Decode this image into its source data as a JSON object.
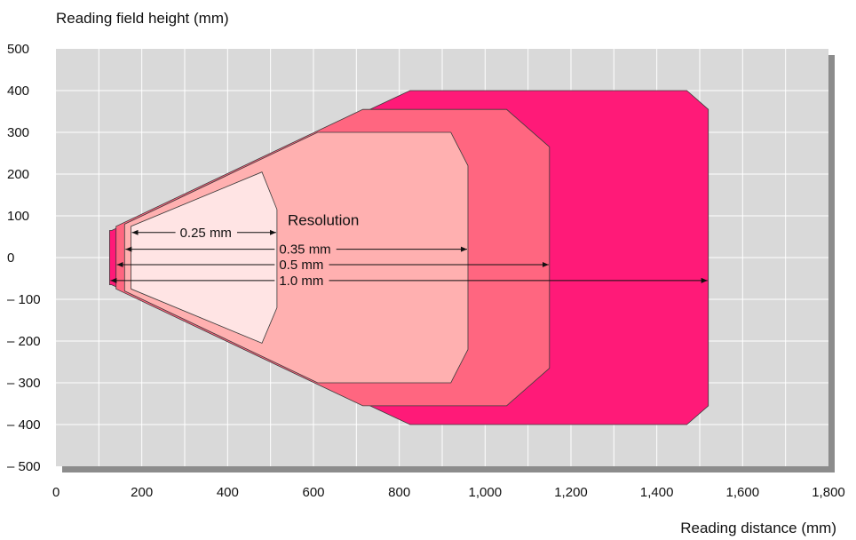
{
  "chart_data": {
    "type": "area",
    "xlabel": "Reading distance (mm)",
    "ylabel": "Reading field height (mm)",
    "xlim": [
      0,
      1800
    ],
    "ylim": [
      -500,
      500
    ],
    "x_ticks": [
      0,
      200,
      400,
      600,
      800,
      1000,
      1200,
      1400,
      1600,
      1800
    ],
    "x_tick_labels": [
      "0",
      "200",
      "400",
      "600",
      "800",
      "1,000",
      "1,200",
      "1,400",
      "1,600",
      "1,800"
    ],
    "y_ticks": [
      500,
      400,
      300,
      200,
      100,
      0,
      -100,
      -200,
      -300,
      -400,
      -500
    ],
    "y_tick_labels": [
      "500",
      "400",
      "300",
      "200",
      "100",
      "0",
      "– 100",
      "– 200",
      "– 300",
      "– 400",
      "– 500"
    ],
    "grid": true,
    "colors": {
      "background": "#d9d9d9",
      "grid": "#ffffff",
      "shadow": "#8c8c8c",
      "outline": "#3a3a3a"
    },
    "annotation_title": "Resolution",
    "series": [
      {
        "name": "1.0 mm",
        "color": "#ff1a78",
        "label_y": -55,
        "arrow_end": 1520,
        "points": [
          [
            125,
            65
          ],
          [
            130,
            65
          ],
          [
            825,
            400
          ],
          [
            1470,
            400
          ],
          [
            1520,
            355
          ],
          [
            1520,
            -355
          ],
          [
            1470,
            -400
          ],
          [
            825,
            -400
          ],
          [
            130,
            -65
          ],
          [
            125,
            -65
          ]
        ]
      },
      {
        "name": "0.5 mm",
        "color": "#ff6680",
        "label_y": -17,
        "arrow_end": 1150,
        "points": [
          [
            140,
            75
          ],
          [
            715,
            355
          ],
          [
            1050,
            355
          ],
          [
            1150,
            265
          ],
          [
            1150,
            -265
          ],
          [
            1050,
            -355
          ],
          [
            715,
            -355
          ],
          [
            140,
            -75
          ]
        ]
      },
      {
        "name": "0.35 mm",
        "color": "#ffb0b0",
        "label_y": 20,
        "arrow_end": 960,
        "points": [
          [
            160,
            80
          ],
          [
            610,
            300
          ],
          [
            920,
            300
          ],
          [
            960,
            220
          ],
          [
            960,
            -220
          ],
          [
            920,
            -300
          ],
          [
            610,
            -300
          ],
          [
            160,
            -80
          ]
        ]
      },
      {
        "name": "0.25 mm",
        "color": "#ffe4e4",
        "label_y": 60,
        "arrow_end": 515,
        "points": [
          [
            175,
            75
          ],
          [
            480,
            205
          ],
          [
            515,
            115
          ],
          [
            515,
            -120
          ],
          [
            480,
            -205
          ],
          [
            175,
            -75
          ]
        ]
      }
    ]
  }
}
